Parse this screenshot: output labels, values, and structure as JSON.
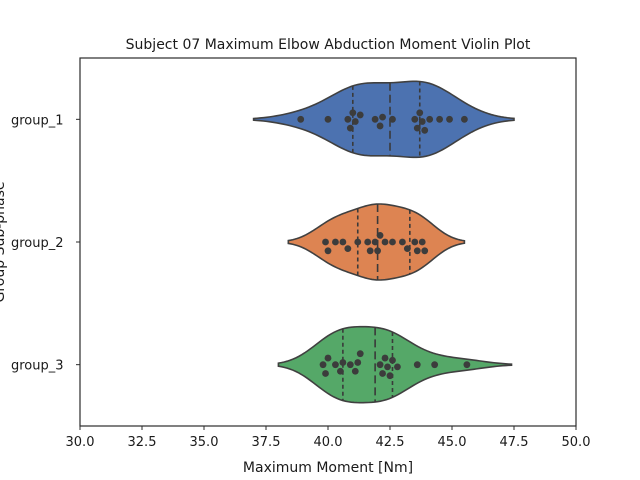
{
  "chart_data": {
    "type": "violin",
    "title": "Subject 07 Maximum Elbow Abduction Moment Violin Plot",
    "xlabel": "Maximum Moment [Nm]",
    "ylabel": "Group Sub-phase",
    "xlim": [
      30.0,
      50.0
    ],
    "x_ticks": [
      "30.0",
      "32.5",
      "35.0",
      "37.5",
      "40.0",
      "42.5",
      "45.0",
      "47.5",
      "50.0"
    ],
    "grid": false,
    "legend": "none",
    "series": [
      {
        "name": "group_1",
        "color": "#4c72b0",
        "min": 37.0,
        "max": 47.5,
        "q1": 41.0,
        "median": 42.5,
        "q3": 43.7,
        "points": [
          38.9,
          40.0,
          40.8,
          40.9,
          41.0,
          41.1,
          41.3,
          41.9,
          42.1,
          42.2,
          42.6,
          43.5,
          43.6,
          43.7,
          43.8,
          43.9,
          44.1,
          44.5,
          44.9,
          45.5
        ]
      },
      {
        "name": "group_2",
        "color": "#dd8452",
        "min": 38.4,
        "max": 45.5,
        "q1": 41.2,
        "median": 42.0,
        "q3": 43.3,
        "points": [
          39.9,
          40.0,
          40.3,
          40.6,
          40.8,
          41.2,
          41.6,
          41.7,
          41.9,
          42.0,
          42.1,
          42.3,
          42.6,
          43.0,
          43.2,
          43.5,
          43.6,
          43.8,
          43.9
        ]
      },
      {
        "name": "group_3",
        "color": "#55a868",
        "min": 38.0,
        "max": 47.4,
        "q1": 40.6,
        "median": 41.9,
        "q3": 42.6,
        "points": [
          39.8,
          39.9,
          40.0,
          40.3,
          40.5,
          40.6,
          40.9,
          41.1,
          41.2,
          41.3,
          42.1,
          42.2,
          42.3,
          42.4,
          42.5,
          42.6,
          42.8,
          43.6,
          44.3,
          45.6
        ]
      }
    ]
  }
}
